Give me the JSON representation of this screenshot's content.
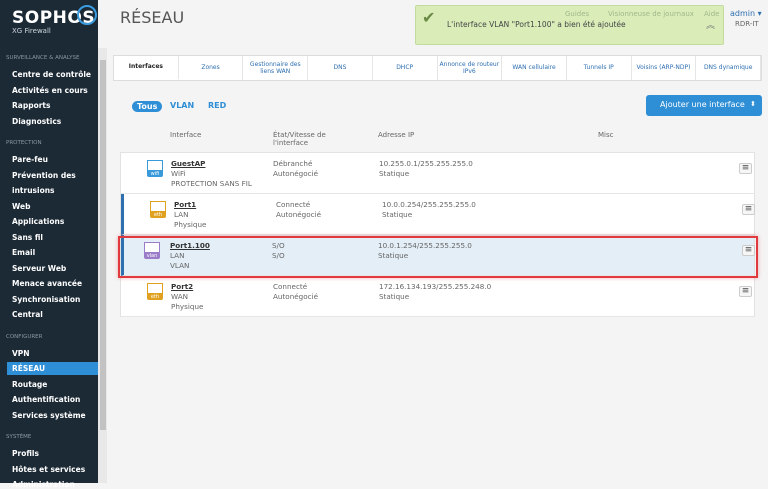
{
  "brand": {
    "name": "SOPHOS",
    "product": "XG Firewall"
  },
  "sidebar": {
    "sections": [
      {
        "label": "SURVEILLANCE & ANALYSE",
        "items": [
          "Centre de contrôle",
          "Activités en cours",
          "Rapports",
          "Diagnostics"
        ]
      },
      {
        "label": "PROTECTION",
        "items": [
          "Pare-feu",
          "Prévention des",
          "intrusions",
          "Web",
          "Applications",
          "Sans fil",
          "Email",
          "Serveur Web",
          "Menace avancée",
          "Synchronisation",
          "Central"
        ]
      },
      {
        "label": "CONFIGURER",
        "items": [
          "VPN",
          "RÉSEAU",
          "Routage",
          "Authentification",
          "Services système"
        ]
      },
      {
        "label": "SYSTÈME",
        "items": [
          "Profils",
          "Hôtes et services",
          "Administration"
        ]
      }
    ],
    "active": "RÉSEAU"
  },
  "header": {
    "title": "RÉSEAU",
    "links": [
      "Guides",
      "Visionneuse de journaux",
      "Aide"
    ],
    "user": "admin",
    "org": "RDR-IT"
  },
  "notification": {
    "message": "L'interface VLAN \"Port1.100\" a bien été ajoutée",
    "color": "#d7ebb3"
  },
  "tabs": [
    "Interfaces",
    "Zones",
    "Gestionnaire des liens WAN",
    "DNS",
    "DHCP",
    "Annonce de routeur IPv6",
    "WAN cellulaire",
    "Tunnels IP",
    "Voisins (ARP-NDP)",
    "DNS dynamique"
  ],
  "active_tab": "Interfaces",
  "filters": [
    "Tous",
    "VLAN",
    "RED"
  ],
  "active_filter": "Tous",
  "add_button": "Ajouter une interface",
  "columns": [
    "Interface",
    "État/Vitesse de l'interface",
    "Adresse IP",
    "Misc"
  ],
  "rows": [
    {
      "icon": "wifi",
      "icon_label": "wifi",
      "name": "GuestAP",
      "zone": "WiFi",
      "type": "PROTECTION SANS FIL",
      "status": "Débranché",
      "speed": "Autonégocié",
      "ip": "10.255.0.1/255.255.255.0",
      "mode": "Statique"
    },
    {
      "icon": "eth",
      "icon_label": "eth",
      "name": "Port1",
      "zone": "LAN",
      "type": "Physique",
      "status": "Connecté",
      "speed": "Autonégocié",
      "ip": "10.0.0.254/255.255.255.0",
      "mode": "Statique"
    },
    {
      "icon": "vlan",
      "icon_label": "vlan",
      "name": "Port1.100",
      "zone": "LAN",
      "type": "VLAN",
      "status": "S/O",
      "speed": "S/O",
      "ip": "10.0.1.254/255.255.255.0",
      "mode": "Statique"
    },
    {
      "icon": "eth",
      "icon_label": "eth",
      "name": "Port2",
      "zone": "WAN",
      "type": "Physique",
      "status": "Connecté",
      "speed": "Autonégocié",
      "ip": "172.16.134.193/255.255.248.0",
      "mode": "Statique"
    }
  ],
  "colors": {
    "accent": "#2e8ed6",
    "sidebar": "#1c2a36",
    "highlight": "#e0393e",
    "wifi": "#3a9ad9",
    "eth": "#e0a020",
    "vlan": "#9b7cc8"
  }
}
